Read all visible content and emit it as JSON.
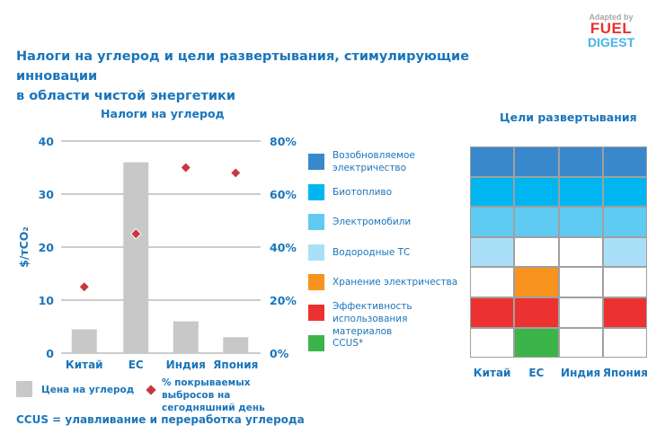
{
  "title_line1": "Налоги на углерод и цели развертывания, стимулирующие инновации",
  "title_line2": "в области чистой энергетики",
  "logo": {
    "adapted": "Adapted by",
    "fuel": "FUEL",
    "digest": "DIGEST"
  },
  "footnote": "CCUS = улавливание и переработка углерода",
  "chart_data": [
    {
      "type": "bar",
      "title": "Налоги на углерод",
      "categories": [
        "Китай",
        "ЕС",
        "Индия",
        "Япония"
      ],
      "ylabel": "$/тCO₂",
      "ylim": [
        0,
        40
      ],
      "yticks": [
        "0",
        "10",
        "20",
        "30",
        "40"
      ],
      "y2lim": [
        0,
        80
      ],
      "y2ticks": [
        "0%",
        "20%",
        "40%",
        "60%",
        "80%"
      ],
      "grid": true,
      "series": [
        {
          "name": "Цена на углерод",
          "type": "bar",
          "axis": "left",
          "color": "#c8c8c8",
          "values": [
            4.5,
            36,
            6,
            3
          ]
        },
        {
          "name": "% покрываемых выбросов на сегодняшний день",
          "type": "scatter",
          "marker": "diamond",
          "axis": "right",
          "color": "#c8383e",
          "values": [
            25,
            45,
            70,
            68
          ]
        }
      ],
      "legend_placement": "bottom"
    },
    {
      "type": "heatmap",
      "title": "Цели развертывания",
      "columns": [
        "Китай",
        "ЕС",
        "Индия",
        "Япония"
      ],
      "rows": [
        {
          "label": "Возобновляемое электричество",
          "color": "#3a88cc",
          "values": [
            1,
            1,
            1,
            1
          ]
        },
        {
          "label": "Биотопливо",
          "color": "#00b6f0",
          "values": [
            1,
            1,
            1,
            1
          ]
        },
        {
          "label": "Электромобили",
          "color": "#5fcaf2",
          "values": [
            1,
            1,
            1,
            1
          ]
        },
        {
          "label": "Водородные ТС",
          "color": "#aadff8",
          "values": [
            1,
            0,
            0,
            1
          ]
        },
        {
          "label": "Хранение электричества",
          "color": "#f7931e",
          "values": [
            0,
            1,
            0,
            0
          ]
        },
        {
          "label": "Эффективность использования материалов",
          "color": "#ec3230",
          "values": [
            1,
            1,
            0,
            1
          ]
        },
        {
          "label": "CCUS*",
          "color": "#3cb44a",
          "values": [
            0,
            1,
            0,
            0
          ]
        }
      ]
    }
  ]
}
